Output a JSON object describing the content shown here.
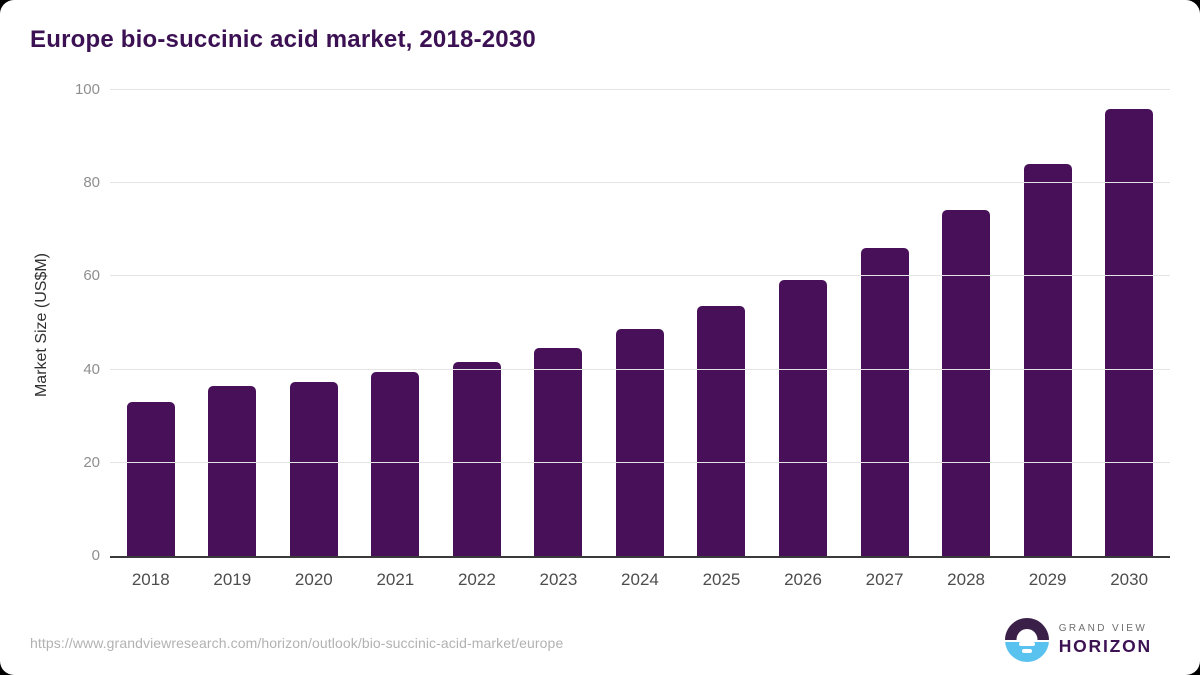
{
  "chart_data": {
    "type": "bar",
    "title": "Europe bio-succinic acid market, 2018-2030",
    "xlabel": "",
    "ylabel": "Market Size (US$M)",
    "categories": [
      "2018",
      "2019",
      "2020",
      "2021",
      "2022",
      "2023",
      "2024",
      "2025",
      "2026",
      "2027",
      "2028",
      "2029",
      "2030"
    ],
    "values": [
      33.0,
      36.5,
      37.4,
      39.4,
      41.6,
      44.6,
      48.7,
      53.7,
      59.2,
      66.1,
      74.3,
      84.1,
      95.9
    ],
    "ylim": [
      0,
      100
    ],
    "yticks": [
      0,
      20,
      40,
      60,
      80,
      100
    ],
    "grid": true,
    "legend": "none",
    "bar_color": "#471059"
  },
  "colors": {
    "bar": "#471059",
    "title": "#3c1154",
    "gridline": "#e4e4e4",
    "axis_line": "#3a3a3a",
    "y_tick_label": "#8f8f8f",
    "x_tick_label": "#4d4d4d",
    "y_axis_title": "#303030",
    "source_url": "#b2b2b2",
    "logo_purple": "#3a2048",
    "logo_blue": "#5ac2ee",
    "logo_text_gray": "#6e6e6e",
    "logo_text_purple": "#3d1253",
    "card_bg": "#ffffff",
    "page_bg": "#000000"
  },
  "footer": {
    "source_url": "https://www.grandviewresearch.com/horizon/outlook/bio-succinic-acid-market/europe",
    "logo": {
      "brand_line1": "GRAND VIEW",
      "brand_line2": "HORIZON"
    }
  }
}
